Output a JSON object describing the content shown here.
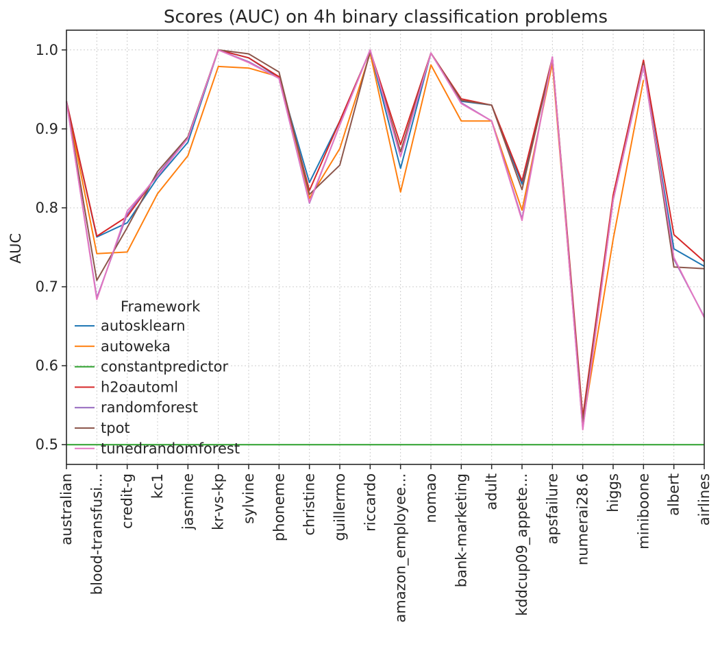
{
  "chart_data": {
    "type": "line",
    "title": "Scores (AUC) on 4h binary classification problems",
    "xlabel": "",
    "ylabel": "AUC",
    "ylim": [
      0.475,
      1.025
    ],
    "yticks": [
      "0.5",
      "0.6",
      "0.7",
      "0.8",
      "0.9",
      "1.0"
    ],
    "grid": true,
    "legend": {
      "title": "Framework",
      "placement": "lower-left"
    },
    "categories": [
      "australian",
      "blood-transfusi...",
      "credit-g",
      "kc1",
      "jasmine",
      "kr-vs-kp",
      "sylvine",
      "phoneme",
      "christine",
      "guillermo",
      "riccardo",
      "amazon_employee...",
      "nomao",
      "bank-marketing",
      "adult",
      "kddcup09_appete...",
      "apsfailure",
      "numerai28.6",
      "higgs",
      "miniboone",
      "albert",
      "airlines"
    ],
    "series": [
      {
        "name": "autosklearn",
        "color": "#1f77b4",
        "values": [
          0.935,
          0.763,
          0.781,
          0.838,
          0.883,
          1.0,
          0.99,
          0.965,
          0.832,
          0.91,
          0.999,
          0.85,
          0.996,
          0.935,
          0.93,
          0.83,
          0.99,
          0.53,
          0.81,
          0.98,
          0.748,
          0.726
        ]
      },
      {
        "name": "autoweka",
        "color": "#ff7f0e",
        "values": [
          0.935,
          0.742,
          0.744,
          0.818,
          0.866,
          0.979,
          0.977,
          0.966,
          0.812,
          0.875,
          0.996,
          0.82,
          0.981,
          0.91,
          0.91,
          0.797,
          0.983,
          0.525,
          0.76,
          0.962,
          null,
          null
        ]
      },
      {
        "name": "constantpredictor",
        "color": "#2ca02c",
        "values": [
          0.5,
          0.5,
          0.5,
          0.5,
          0.5,
          0.5,
          0.5,
          0.5,
          0.5,
          0.5,
          0.5,
          0.5,
          0.5,
          0.5,
          0.5,
          0.5,
          0.5,
          0.5,
          0.5,
          0.5,
          0.5,
          0.5
        ]
      },
      {
        "name": "h2oautoml",
        "color": "#d62728",
        "values": [
          0.935,
          0.764,
          0.789,
          0.842,
          0.889,
          1.0,
          0.99,
          0.966,
          0.822,
          0.91,
          0.999,
          0.88,
          0.996,
          0.938,
          0.93,
          0.834,
          0.99,
          0.535,
          0.816,
          0.987,
          0.766,
          0.732
        ]
      },
      {
        "name": "randomforest",
        "color": "#9467bd",
        "values": [
          0.935,
          0.686,
          0.792,
          0.842,
          0.889,
          1.0,
          0.985,
          0.964,
          0.806,
          0.905,
          1.0,
          0.865,
          0.996,
          0.933,
          0.91,
          0.786,
          0.991,
          0.52,
          0.81,
          0.979,
          0.735,
          0.662
        ]
      },
      {
        "name": "tpot",
        "color": "#8c564b",
        "values": [
          0.935,
          0.708,
          0.775,
          0.846,
          0.89,
          1.0,
          0.995,
          0.972,
          0.817,
          0.854,
          0.998,
          0.871,
          0.996,
          0.936,
          0.93,
          0.823,
          0.989,
          0.528,
          0.81,
          0.983,
          0.725,
          0.723
        ]
      },
      {
        "name": "tunedrandomforest",
        "color": "#e377c2",
        "values": [
          0.935,
          0.684,
          0.796,
          0.84,
          0.888,
          1.0,
          0.984,
          0.964,
          0.807,
          0.905,
          1.0,
          0.865,
          0.996,
          0.932,
          0.91,
          0.784,
          0.991,
          0.519,
          0.81,
          0.98,
          0.737,
          0.661
        ]
      }
    ]
  }
}
